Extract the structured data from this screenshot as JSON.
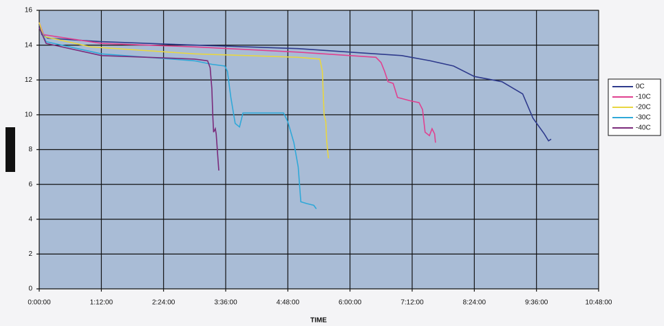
{
  "chart_data": {
    "type": "line",
    "x_label": "TIME",
    "xlim": [
      0,
      648
    ],
    "xticks": [
      {
        "value": 0,
        "label": "0:00:00"
      },
      {
        "value": 72,
        "label": "1:12:00"
      },
      {
        "value": 144,
        "label": "2:24:00"
      },
      {
        "value": 216,
        "label": "3:36:00"
      },
      {
        "value": 288,
        "label": "4:48:00"
      },
      {
        "value": 360,
        "label": "6:00:00"
      },
      {
        "value": 432,
        "label": "7:12:00"
      },
      {
        "value": 504,
        "label": "8:24:00"
      },
      {
        "value": 576,
        "label": "9:36:00"
      },
      {
        "value": 648,
        "label": "10:48:00"
      }
    ],
    "ylim": [
      0,
      16
    ],
    "yticks": [
      0,
      2,
      4,
      6,
      8,
      10,
      12,
      14,
      16
    ],
    "grid": true,
    "legend": "right",
    "series": [
      {
        "name": "0C",
        "color": "#2e3a8c",
        "x": [
          0,
          3,
          10,
          72,
          180,
          300,
          360,
          420,
          453,
          480,
          504,
          536,
          560,
          572,
          585,
          590,
          593
        ],
        "values": [
          15.2,
          14.6,
          14.4,
          14.2,
          14.0,
          13.8,
          13.6,
          13.4,
          13.1,
          12.8,
          12.2,
          11.9,
          11.2,
          9.8,
          8.9,
          8.5,
          8.6
        ]
      },
      {
        "name": "-10C",
        "color": "#e0408f",
        "x": [
          0,
          5,
          72,
          180,
          300,
          360,
          390,
          396,
          400,
          404,
          410,
          415,
          430,
          440,
          444,
          447,
          452,
          455,
          458,
          459
        ],
        "values": [
          15.3,
          14.6,
          14.1,
          13.9,
          13.6,
          13.4,
          13.3,
          13.0,
          12.5,
          11.9,
          11.8,
          11.0,
          10.8,
          10.7,
          10.3,
          9.0,
          8.8,
          9.2,
          8.9,
          8.4
        ]
      },
      {
        "name": "-20C",
        "color": "#e8d640",
        "x": [
          0,
          5,
          60,
          180,
          300,
          325,
          328,
          330,
          332,
          333,
          335
        ],
        "values": [
          15.3,
          14.5,
          13.9,
          13.5,
          13.3,
          13.2,
          12.5,
          10.0,
          9.6,
          8.5,
          7.5
        ]
      },
      {
        "name": "-30C",
        "color": "#2fa8d8",
        "x": [
          0,
          8,
          72,
          180,
          200,
          215,
          218,
          222,
          227,
          232,
          236,
          270,
          283,
          288,
          295,
          300,
          303,
          310,
          318,
          321
        ],
        "values": [
          15.0,
          14.2,
          13.5,
          13.1,
          12.9,
          12.8,
          12.5,
          11.0,
          9.5,
          9.3,
          10.1,
          10.1,
          10.1,
          9.6,
          8.4,
          7.0,
          5.0,
          4.9,
          4.8,
          4.6
        ]
      },
      {
        "name": "-40C",
        "color": "#7a2a7a",
        "x": [
          0,
          8,
          72,
          180,
          195,
          198,
          200,
          201,
          202,
          204,
          205,
          207,
          208
        ],
        "values": [
          15.0,
          14.1,
          13.4,
          13.2,
          13.1,
          12.7,
          11.5,
          10.0,
          9.0,
          9.2,
          8.9,
          7.5,
          6.8
        ]
      }
    ]
  }
}
